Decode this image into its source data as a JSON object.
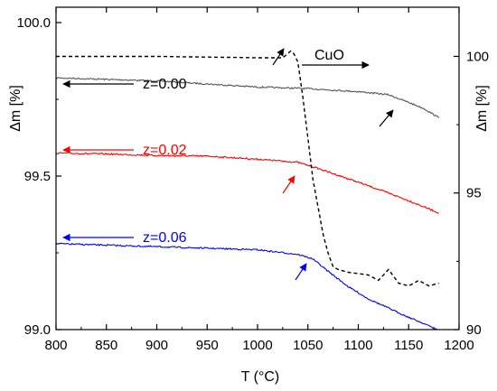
{
  "chart_data": {
    "type": "line",
    "xlabel": "T (°C)",
    "ylabel_left": "Δm [%]",
    "ylabel_right": "Δm [%]",
    "xlim": [
      800,
      1200
    ],
    "ylim_left": [
      99.0,
      100.05
    ],
    "ylim_right": [
      90,
      101.8
    ],
    "x_ticks": [
      800,
      850,
      900,
      950,
      1000,
      1050,
      1100,
      1150,
      1200
    ],
    "y_ticks_left": [
      "99.0",
      "99.5",
      "100.0"
    ],
    "y_ticks_right": [
      "90",
      "95",
      "100"
    ],
    "y_ticks_right_values": [
      90,
      95,
      100
    ],
    "grid": false,
    "series": [
      {
        "name": "z=0.00",
        "color": "#555555",
        "axis": "left",
        "x": [
          800,
          850,
          900,
          950,
          1000,
          1050,
          1100,
          1130,
          1150,
          1165,
          1180
        ],
        "y": [
          99.82,
          99.815,
          99.81,
          99.8,
          99.79,
          99.785,
          99.775,
          99.765,
          99.74,
          99.72,
          99.69
        ]
      },
      {
        "name": "z=0.02",
        "color": "#ff0000",
        "axis": "left",
        "x": [
          800,
          850,
          900,
          950,
          1000,
          1040,
          1060,
          1100,
          1130,
          1150,
          1180
        ],
        "y": [
          99.575,
          99.572,
          99.567,
          99.565,
          99.555,
          99.545,
          99.525,
          99.48,
          99.445,
          99.42,
          99.38
        ]
      },
      {
        "name": "z=0.06",
        "color": "#0000ff",
        "axis": "left",
        "x": [
          800,
          850,
          900,
          950,
          1000,
          1040,
          1055,
          1070,
          1090,
          1110,
          1130,
          1150,
          1165,
          1178
        ],
        "y": [
          99.28,
          99.275,
          99.27,
          99.265,
          99.26,
          99.245,
          99.23,
          99.19,
          99.14,
          99.1,
          99.07,
          99.04,
          99.02,
          99.0
        ]
      },
      {
        "name": "CuO",
        "color": "#000000",
        "dashed": true,
        "axis": "right",
        "x": [
          800,
          900,
          1000,
          1025,
          1030,
          1033,
          1036,
          1040,
          1045,
          1050,
          1055,
          1060,
          1065,
          1070,
          1075,
          1080,
          1090,
          1100,
          1110,
          1120,
          1130,
          1140,
          1150,
          1160,
          1170,
          1180
        ],
        "y": [
          100,
          100,
          99.95,
          99.95,
          100.1,
          100.2,
          100.1,
          99.8,
          98.5,
          97.0,
          95.5,
          94.5,
          93.5,
          92.8,
          92.3,
          92.2,
          92.1,
          92.05,
          92.0,
          91.8,
          92.2,
          91.7,
          91.6,
          91.8,
          91.6,
          91.7
        ]
      }
    ],
    "annotations": [
      {
        "text": "z=0.00",
        "color": "#000000"
      },
      {
        "text": "z=0.02",
        "color": "#ff0000"
      },
      {
        "text": "z=0.06",
        "color": "#0000ff"
      },
      {
        "text": "CuO",
        "color": "#000000"
      }
    ]
  }
}
